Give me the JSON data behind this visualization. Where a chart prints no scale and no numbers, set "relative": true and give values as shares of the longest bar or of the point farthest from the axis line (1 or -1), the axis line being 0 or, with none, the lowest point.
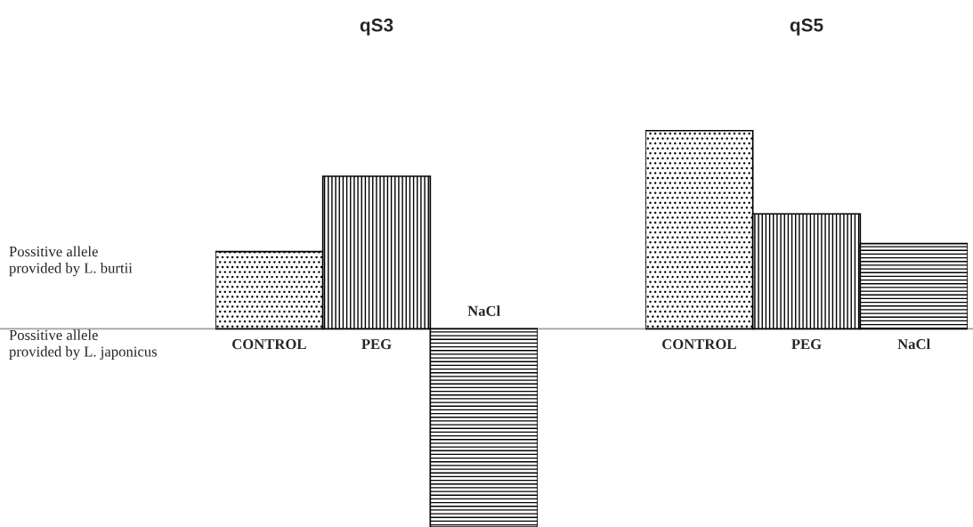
{
  "chart_data": [
    {
      "type": "bar",
      "title": "qS3",
      "categories": [
        "CONTROL",
        "PEG",
        "NaCl"
      ],
      "values": [
        0.39,
        0.77,
        -1
      ],
      "color": "#000000",
      "relative": true,
      "annotations": [
        "Possitive allele\nprovided by L. burtii",
        "Possitive allele\nprovided by L. japonicus"
      ]
    },
    {
      "type": "bar",
      "title": "qS5",
      "categories": [
        "CONTROL",
        "PEG",
        "NaCl"
      ],
      "values": [
        1,
        0.58,
        0.43
      ],
      "color": "#000000",
      "relative": true
    }
  ]
}
